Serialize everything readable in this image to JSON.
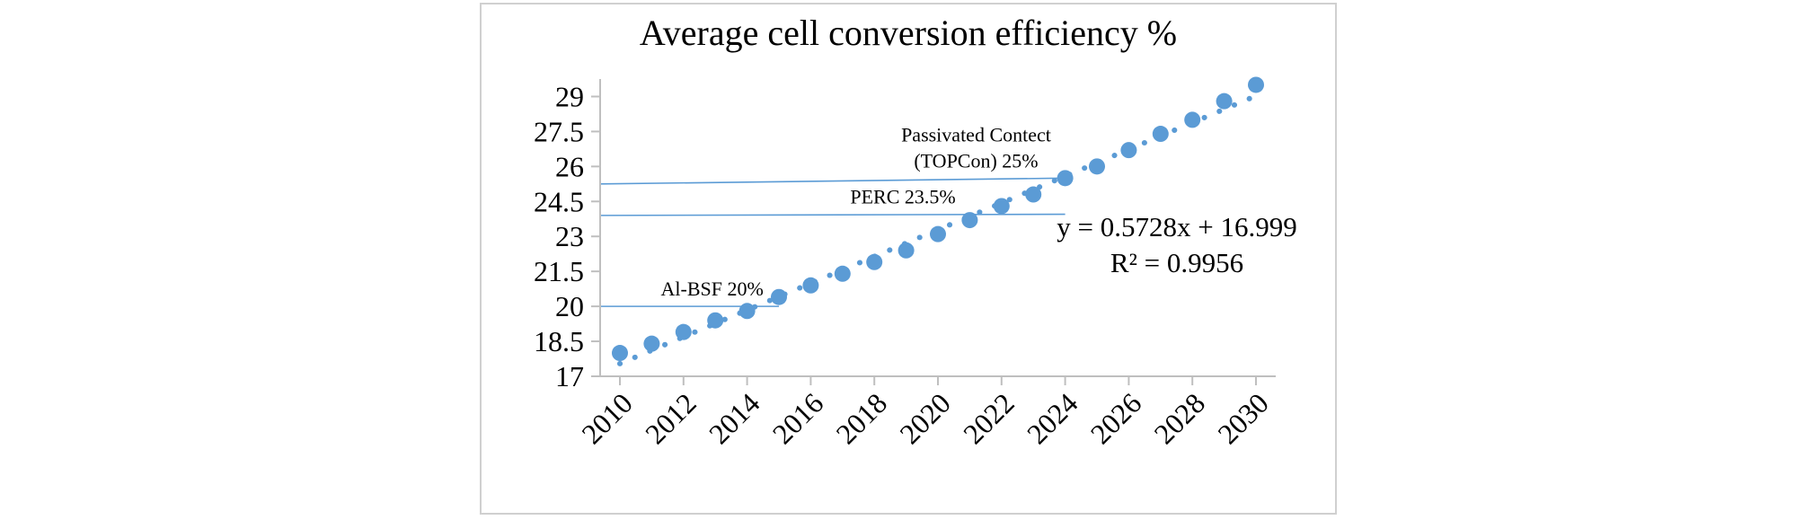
{
  "chart_data": {
    "type": "scatter",
    "title": "Average cell conversion efficiency %",
    "xlabel": "",
    "ylabel": "",
    "xlim": [
      2010,
      2030
    ],
    "ylim": [
      17,
      29.75
    ],
    "x_ticks": [
      2010,
      2012,
      2014,
      2016,
      2018,
      2020,
      2022,
      2024,
      2026,
      2028,
      2030
    ],
    "x_tick_labels": [
      "2010",
      "2012",
      "2014",
      "2016",
      "2018",
      "2020",
      "2022",
      "2024",
      "2026",
      "2028",
      "2030"
    ],
    "y_ticks": [
      17,
      18.5,
      20,
      21.5,
      23,
      24.5,
      26,
      27.5,
      29
    ],
    "y_tick_labels": [
      "17",
      "18.5",
      "20",
      "21.5",
      "23",
      "24.5",
      "26",
      "27.5",
      "29"
    ],
    "grid": false,
    "series": [
      {
        "name": "Average cell conversion efficiency",
        "color": "#5B9BD5",
        "x": [
          2010,
          2011,
          2012,
          2013,
          2014,
          2015,
          2016,
          2017,
          2018,
          2019,
          2020,
          2021,
          2022,
          2023,
          2024,
          2025,
          2026,
          2027,
          2028,
          2029,
          2030
        ],
        "y": [
          18.0,
          18.4,
          18.9,
          19.4,
          19.8,
          20.4,
          20.9,
          21.4,
          21.9,
          22.4,
          23.1,
          23.7,
          24.3,
          24.8,
          25.5,
          26.0,
          26.7,
          27.4,
          28.0,
          28.8,
          29.5
        ]
      }
    ],
    "trendline": {
      "style": "dotted",
      "color": "#5B9BD5",
      "slope": 0.5728,
      "intercept": 16.999,
      "equation": "y = 0.5728x + 16.999",
      "r_squared": "R² = 0.9956"
    },
    "reference_lines": [
      {
        "name": "al-bsf",
        "label_lines": [
          "Al-BSF 20%"
        ],
        "color": "#5B9BD5",
        "x_start": 2010,
        "x_end": 2015,
        "y_start": 20,
        "y_end": 20
      },
      {
        "name": "perc",
        "label_lines": [
          "PERC 23.5%"
        ],
        "color": "#5B9BD5",
        "x_start": 2010,
        "x_end": 2024,
        "y_start": 23.9,
        "y_end": 23.95
      },
      {
        "name": "topcon",
        "label_lines": [
          "Passivated Contect",
          "(TOPCon) 25%"
        ],
        "color": "#5B9BD5",
        "x_start": 2010,
        "x_end": 2024,
        "y_start": 25.25,
        "y_end": 25.5
      }
    ]
  }
}
